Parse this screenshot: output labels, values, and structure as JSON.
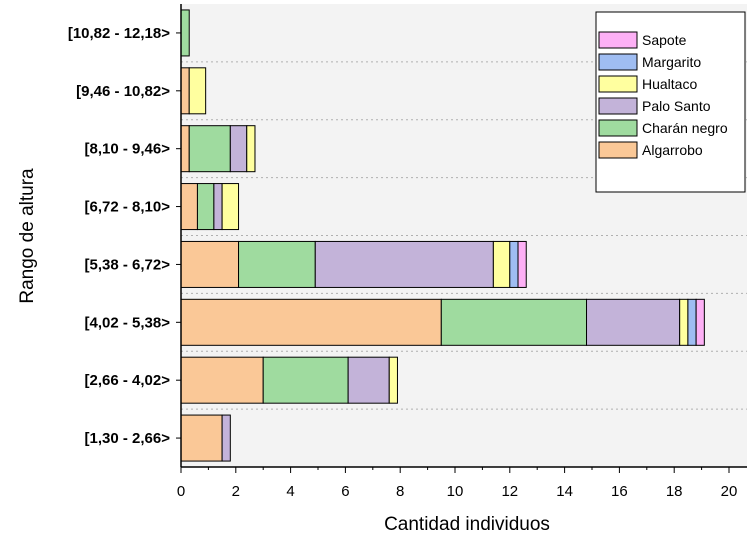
{
  "chart_data": {
    "type": "bar",
    "orientation": "horizontal",
    "stacked": true,
    "title": "",
    "xlabel": "Cantidad individuos",
    "ylabel": "Rango de altura",
    "xlim": [
      0,
      20.5
    ],
    "xticks": [
      0,
      2,
      4,
      6,
      8,
      10,
      12,
      14,
      16,
      18,
      20
    ],
    "grid": "horizontal dashed between categories",
    "legend_position": "top-right",
    "categories": [
      "[1,30 - 2,66>",
      "[2,66 - 4,02>",
      "[4,02 - 5,38>",
      "[5,38 - 6,72>",
      "[6,72 - 8,10>",
      "[8,10 - 9,46>",
      "[9,46 - 10,82>",
      "[10,82 - 12,18>"
    ],
    "series": [
      {
        "name": "Algarrobo",
        "color": "#fac897",
        "values": [
          1.5,
          3.0,
          9.5,
          2.1,
          0.6,
          0.3,
          0.3,
          0.0
        ]
      },
      {
        "name": "Charán negro",
        "color": "#9fdb9f",
        "values": [
          0.0,
          3.1,
          5.3,
          2.8,
          0.6,
          1.5,
          0.0,
          0.3
        ]
      },
      {
        "name": "Palo Santo",
        "color": "#c3b3d9",
        "values": [
          0.3,
          1.5,
          3.4,
          6.5,
          0.3,
          0.6,
          0.0,
          0.0
        ]
      },
      {
        "name": "Hualtaco",
        "color": "#ffff9f",
        "values": [
          0.0,
          0.3,
          0.3,
          0.6,
          0.6,
          0.3,
          0.6,
          0.0
        ]
      },
      {
        "name": "Margarito",
        "color": "#9fbdf2",
        "values": [
          0.0,
          0.0,
          0.3,
          0.3,
          0.0,
          0.0,
          0.0,
          0.0
        ]
      },
      {
        "name": "Sapote",
        "color": "#fdb0f5",
        "values": [
          0.0,
          0.0,
          0.3,
          0.3,
          0.0,
          0.0,
          0.0,
          0.0
        ]
      }
    ],
    "legend_order": [
      "Sapote",
      "Margarito",
      "Hualtaco",
      "Palo Santo",
      "Charán negro",
      "Algarrobo"
    ]
  }
}
